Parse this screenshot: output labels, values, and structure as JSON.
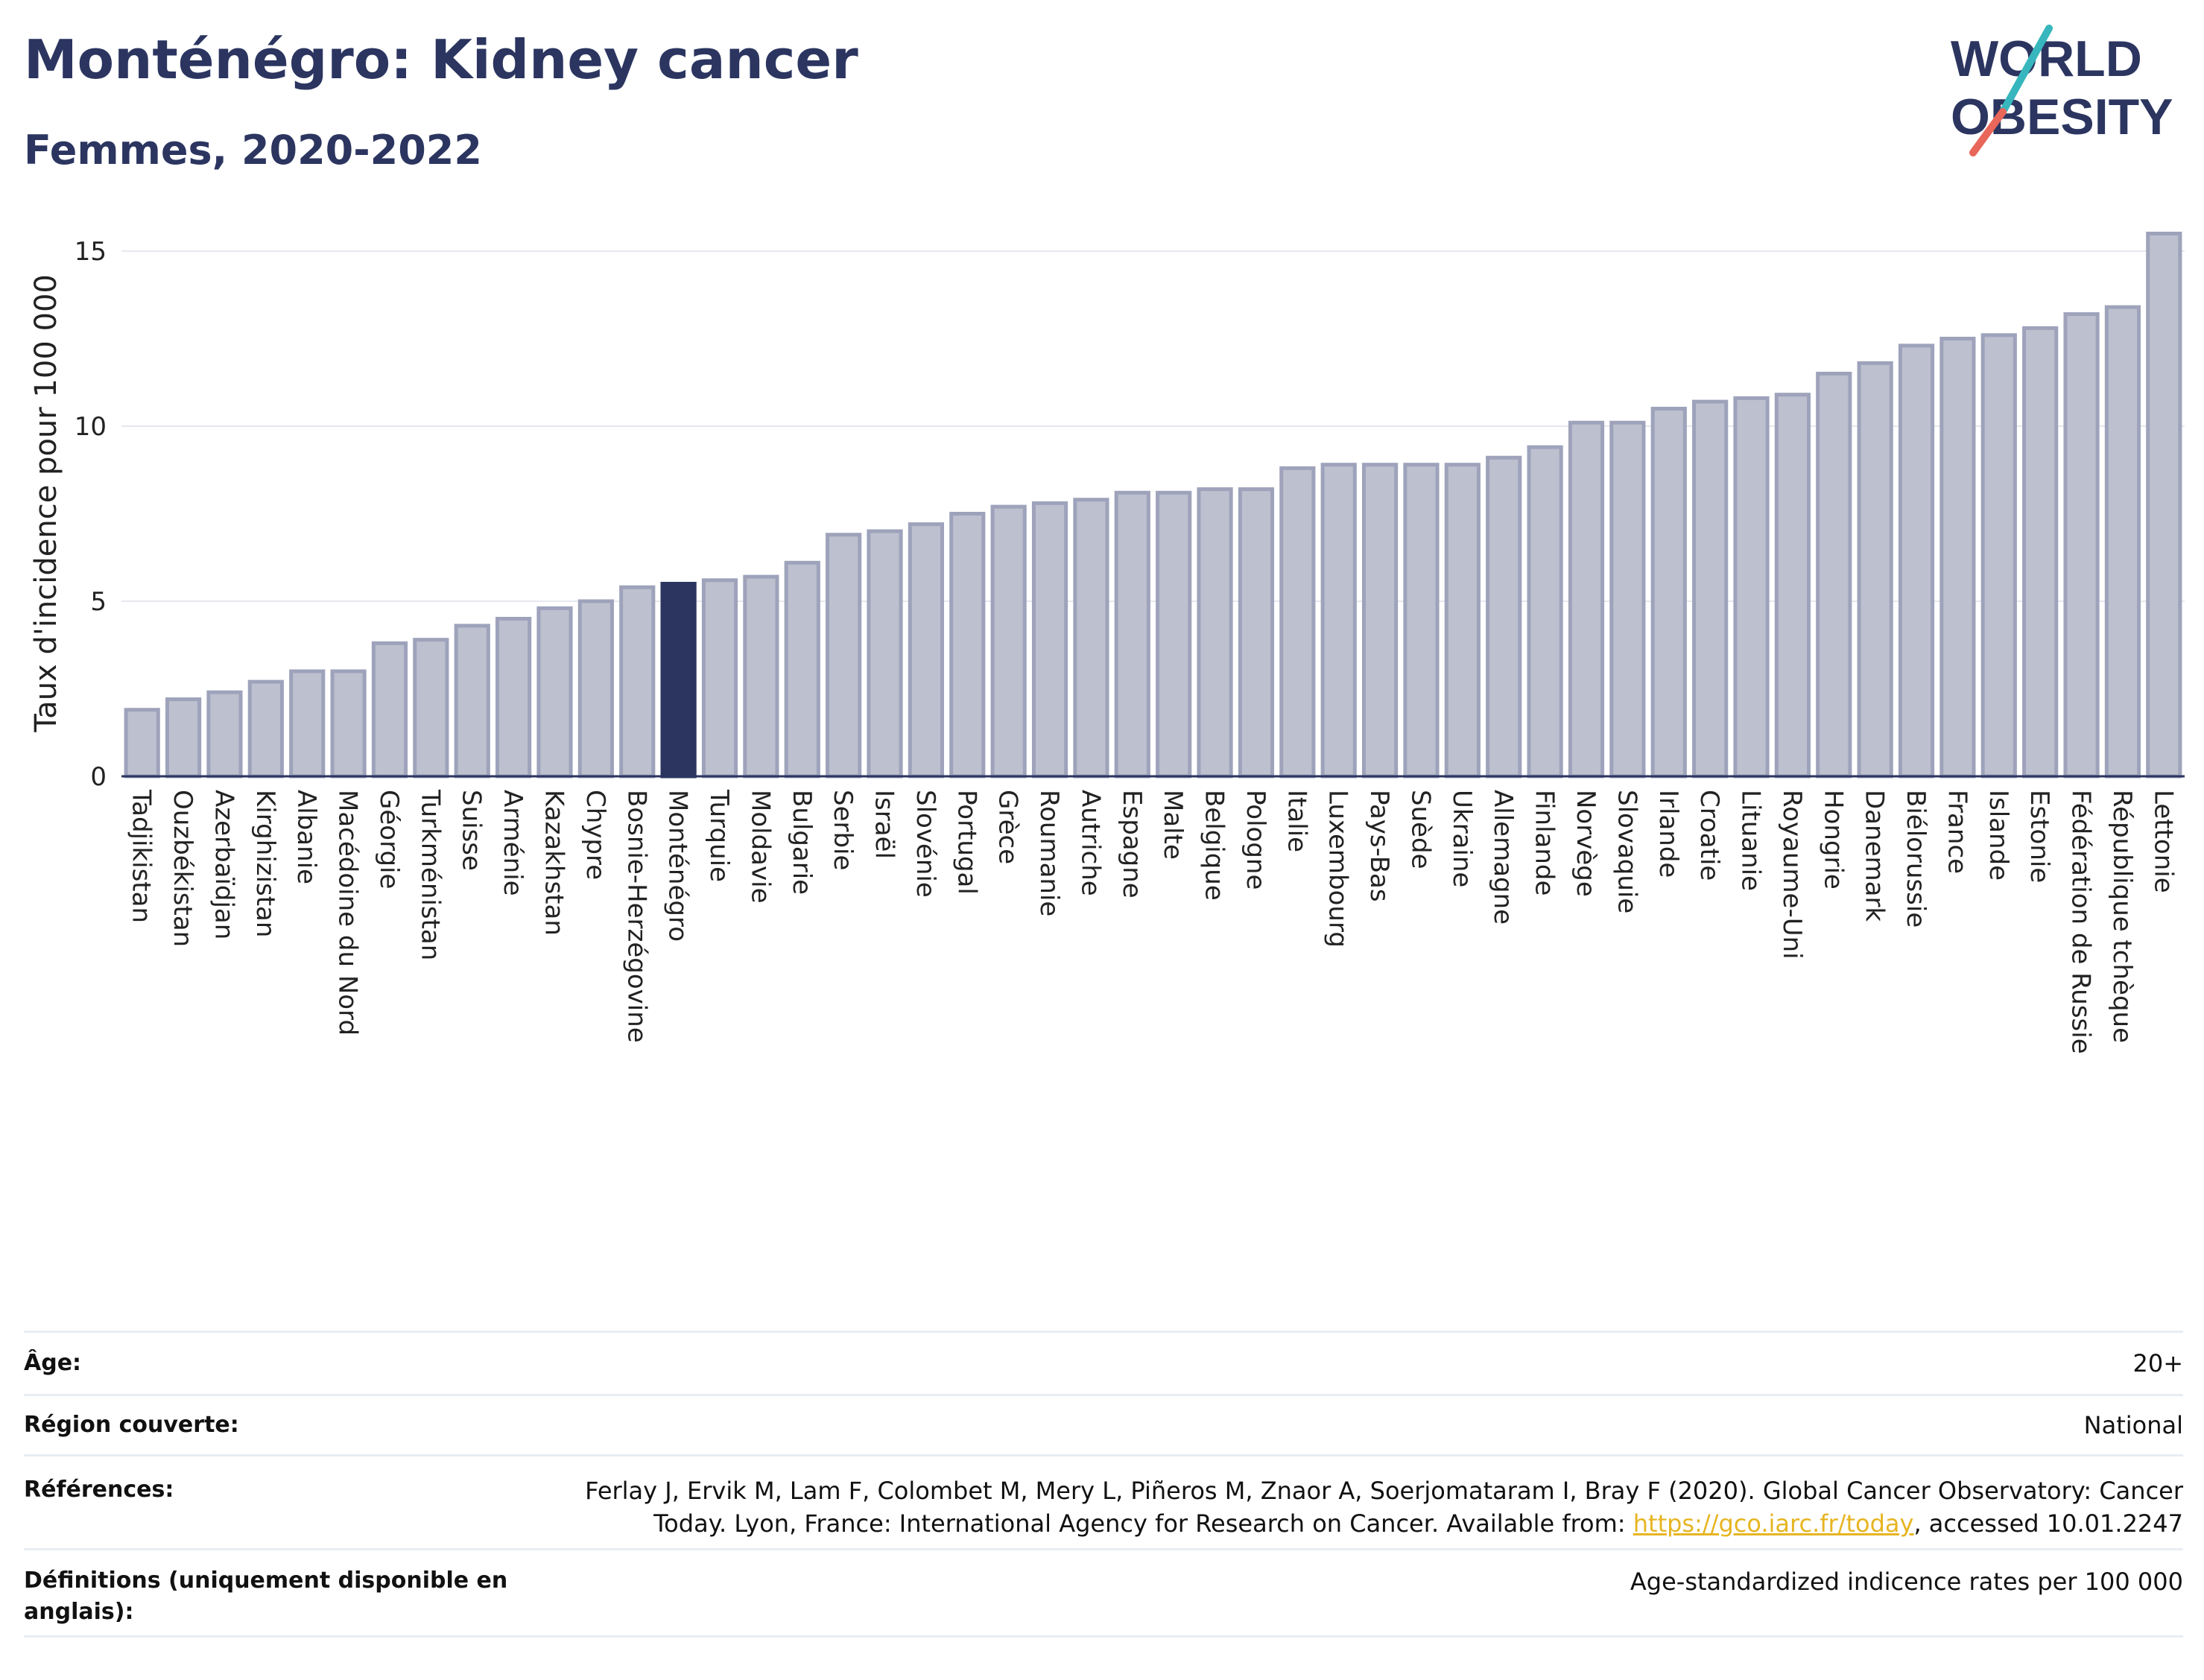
{
  "header": {
    "title": "Monténégro: Kidney cancer",
    "subtitle": "Femmes, 2020-2022"
  },
  "logo": {
    "line1": "WORLD",
    "line2": "OBESITY"
  },
  "colors": {
    "bar": "#bcc0cf",
    "bar_border": "#9ea3bb",
    "highlight": "#2b3560",
    "grid": "#e5e8ee",
    "text": "#2b3560",
    "logo_teal": "#37b6bd",
    "logo_red": "#e8675a"
  },
  "chart_data": {
    "type": "bar",
    "ylabel": "Taux d'incidence pour 100 000",
    "ylim": [
      0,
      16
    ],
    "yticks": [
      0,
      5,
      10,
      15
    ],
    "grid": true,
    "highlight": "Monténégro",
    "categories": [
      "Tadjikistan",
      "Ouzbékistan",
      "Azerbaïdjan",
      "Kirghizistan",
      "Albanie",
      "Macédoine du Nord",
      "Géorgie",
      "Turkménistan",
      "Suisse",
      "Arménie",
      "Kazakhstan",
      "Chypre",
      "Bosnie-Herzégovine",
      "Monténégro",
      "Turquie",
      "Moldavie",
      "Bulgarie",
      "Serbie",
      "Israël",
      "Slovénie",
      "Portugal",
      "Grèce",
      "Roumanie",
      "Autriche",
      "Espagne",
      "Malte",
      "Belgique",
      "Pologne",
      "Italie",
      "Luxembourg",
      "Pays-Bas",
      "Suède",
      "Ukraine",
      "Allemagne",
      "Finlande",
      "Norvège",
      "Slovaquie",
      "Irlande",
      "Croatie",
      "Lituanie",
      "Royaume-Uni",
      "Hongrie",
      "Danemark",
      "Biélorussie",
      "France",
      "Islande",
      "Estonie",
      "Fédération de Russie",
      "République tchèque",
      "Lettonie"
    ],
    "values": [
      1.9,
      2.2,
      2.4,
      2.7,
      3.0,
      3.0,
      3.8,
      3.9,
      4.3,
      4.5,
      4.8,
      5.0,
      5.4,
      5.5,
      5.6,
      5.7,
      6.1,
      6.9,
      7.0,
      7.2,
      7.5,
      7.7,
      7.8,
      7.9,
      8.1,
      8.1,
      8.2,
      8.2,
      8.8,
      8.9,
      8.9,
      8.9,
      8.9,
      9.1,
      9.4,
      10.1,
      10.1,
      10.5,
      10.7,
      10.8,
      10.9,
      11.5,
      11.8,
      12.3,
      12.5,
      12.6,
      12.8,
      13.2,
      13.4,
      15.5
    ]
  },
  "meta": {
    "age_label": "Âge:",
    "age_value": "20+",
    "region_label": "Région couverte:",
    "region_value": "National",
    "refs_label": "Références:",
    "refs_text_1": "Ferlay J, Ervik M, Lam F, Colombet M, Mery L, Piñeros M, Znaor A, Soerjomataram I, Bray F (2020). Global Cancer Observatory: Cancer",
    "refs_text_2": "Today. Lyon, France: International Agency for Research on Cancer. Available from: ",
    "refs_link": "https://gco.iarc.fr/today",
    "refs_text_3": ", accessed 10.01.2247",
    "defs_label": "Définitions (uniquement disponible en anglais):",
    "defs_value": "Age-standardized indicence rates per 100 000"
  }
}
